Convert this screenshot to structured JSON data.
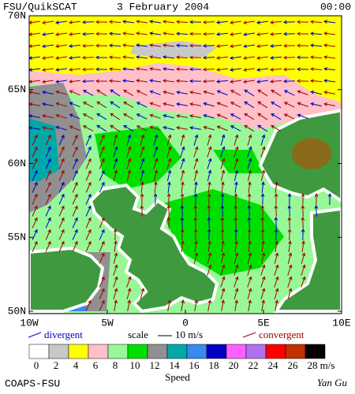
{
  "header": {
    "title": "FSU/QuikSCAT",
    "date": "3 February 2004",
    "time": "00:00"
  },
  "map": {
    "lat_labels": [
      "70N",
      "65N",
      "60N",
      "55N",
      "50N"
    ],
    "lon_labels": [
      "10W",
      "5W",
      "0",
      "5E",
      "10E"
    ]
  },
  "legend": {
    "divergent": "divergent",
    "scale": "scale",
    "scale_value": "10 m/s",
    "convergent": "convergent"
  },
  "colorbar": {
    "labels": [
      "0",
      "2",
      "4",
      "6",
      "8",
      "10",
      "12",
      "14",
      "16",
      "18",
      "20",
      "22",
      "24",
      "26",
      "28"
    ],
    "colors": [
      "#ffffff",
      "#c8c8c8",
      "#ffff00",
      "#ffc0c8",
      "#98f898",
      "#00e000",
      "#909090",
      "#00a8a8",
      "#3a88f0",
      "#0000c0",
      "#ff60ff",
      "#b070f0",
      "#ff0000",
      "#c03000",
      "#000000"
    ],
    "unit": "m/s",
    "title": "Speed"
  },
  "footer": {
    "credit": "COAPS-FSU",
    "author": "Yan Gu"
  }
}
